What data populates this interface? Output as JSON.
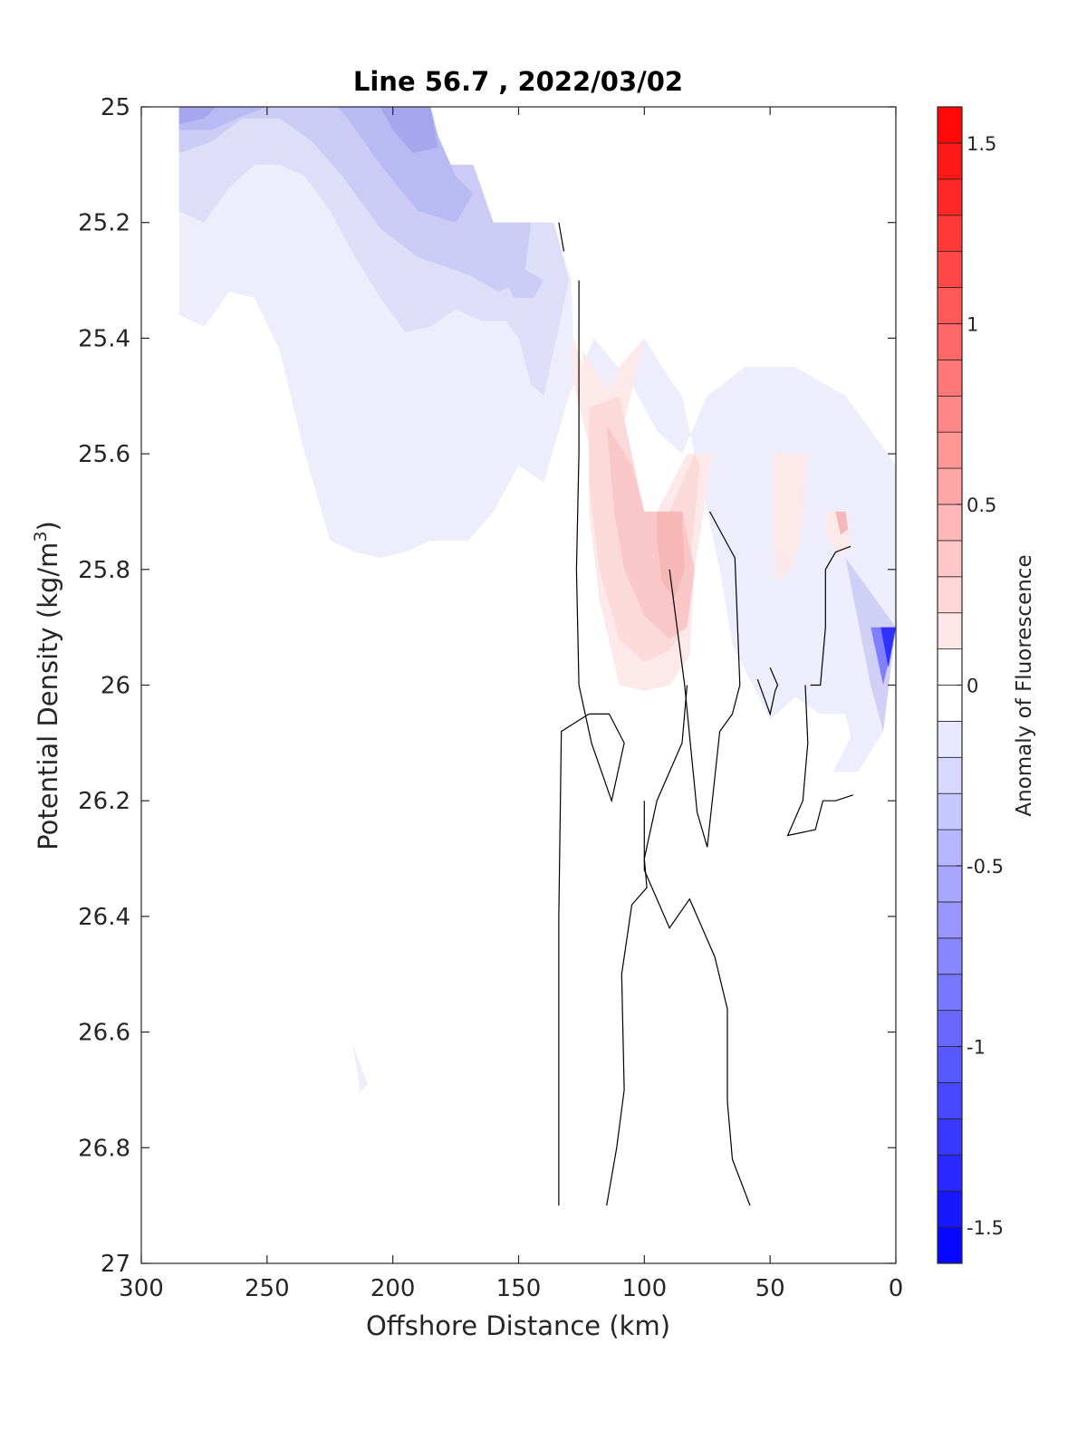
{
  "chart_data": {
    "type": "contour",
    "title": "Line 56.7 , 2022/03/02",
    "xlabel": "Offshore Distance (km)",
    "ylabel_main": "Potential Density (kg/m",
    "ylabel_sup": "3",
    "ylabel_end": ")",
    "colorbar_label": "Anomaly of Fluorescence",
    "xlim": [
      300,
      0
    ],
    "ylim": [
      25,
      27
    ],
    "x_reversed": true,
    "y_reversed": true,
    "xticks": [
      300,
      250,
      200,
      150,
      100,
      50,
      0
    ],
    "xtick_labels": [
      "300",
      "250",
      "200",
      "150",
      "100",
      "50",
      "0"
    ],
    "yticks": [
      25,
      25.2,
      25.4,
      25.6,
      25.8,
      26,
      26.2,
      26.4,
      26.6,
      26.8,
      27
    ],
    "ytick_labels": [
      "25",
      "25.2",
      "25.4",
      "25.6",
      "25.8",
      "26",
      "26.2",
      "26.4",
      "26.6",
      "26.8",
      "27"
    ],
    "colorbar": {
      "range": [
        -1.6,
        1.6
      ],
      "step": 0.1,
      "ticks": [
        1.5,
        1,
        0.5,
        0,
        -0.5,
        -1,
        -1.5
      ],
      "tick_labels": [
        "1.5",
        "1",
        "0.5",
        "0",
        "-0.5",
        "-1",
        "-1.5"
      ],
      "colormap": "blue-white-red",
      "low_color": "#0000ff",
      "mid_color": "#ffffff",
      "high_color": "#ff0000"
    },
    "filled_regions": [
      {
        "level": -0.1,
        "color": "#ededfb",
        "points": [
          [
            285,
            25
          ],
          [
            185,
            25
          ],
          [
            180,
            25.1
          ],
          [
            168,
            25.1
          ],
          [
            160,
            25.2
          ],
          [
            136,
            25.2
          ],
          [
            129,
            25.3
          ],
          [
            128,
            25.45
          ],
          [
            124,
            25.55
          ],
          [
            120,
            25.62
          ],
          [
            115,
            25.5
          ],
          [
            110,
            25.45
          ],
          [
            100,
            25.4
          ],
          [
            90,
            25.47
          ],
          [
            85,
            25.5
          ],
          [
            75,
            25.7
          ],
          [
            70,
            25.8
          ],
          [
            65,
            25.93
          ],
          [
            50,
            26.06
          ],
          [
            40,
            26.02
          ],
          [
            30,
            26.05
          ],
          [
            20,
            26.05
          ],
          [
            18,
            26.09
          ],
          [
            25,
            26.15
          ],
          [
            15,
            26.15
          ],
          [
            5,
            26.08
          ],
          [
            0,
            25.9
          ],
          [
            0,
            25.62
          ],
          [
            20,
            25.5
          ],
          [
            40,
            25.45
          ],
          [
            60,
            25.45
          ],
          [
            75,
            25.5
          ],
          [
            85,
            25.6
          ],
          [
            95,
            25.56
          ],
          [
            105,
            25.48
          ],
          [
            120,
            25.4
          ],
          [
            130,
            25.5
          ],
          [
            140,
            25.65
          ],
          [
            150,
            25.62
          ],
          [
            160,
            25.7
          ],
          [
            170,
            25.75
          ],
          [
            185,
            25.75
          ],
          [
            195,
            25.77
          ],
          [
            205,
            25.78
          ],
          [
            215,
            25.77
          ],
          [
            225,
            25.75
          ],
          [
            235,
            25.6
          ],
          [
            245,
            25.42
          ],
          [
            255,
            25.33
          ],
          [
            265,
            25.32
          ],
          [
            275,
            25.38
          ],
          [
            285,
            25.36
          ]
        ]
      },
      {
        "level": -0.1,
        "color": "#ededfb",
        "points": [
          [
            216,
            26.62
          ],
          [
            213,
            26.7
          ],
          [
            214,
            26.71
          ],
          [
            210,
            26.69
          ]
        ]
      },
      {
        "level": -0.2,
        "color": "#dedef8",
        "points": [
          [
            285,
            25
          ],
          [
            185,
            25
          ],
          [
            180,
            25.1
          ],
          [
            168,
            25.1
          ],
          [
            160,
            25.2
          ],
          [
            136,
            25.2
          ],
          [
            130,
            25.3
          ],
          [
            135,
            25.4
          ],
          [
            140,
            25.5
          ],
          [
            145,
            25.48
          ],
          [
            150,
            25.4
          ],
          [
            155,
            25.37
          ],
          [
            165,
            25.37
          ],
          [
            175,
            25.35
          ],
          [
            185,
            25.38
          ],
          [
            195,
            25.39
          ],
          [
            205,
            25.33
          ],
          [
            215,
            25.26
          ],
          [
            225,
            25.18
          ],
          [
            235,
            25.12
          ],
          [
            245,
            25.1
          ],
          [
            255,
            25.1
          ],
          [
            265,
            25.14
          ],
          [
            275,
            25.2
          ],
          [
            285,
            25.18
          ]
        ]
      },
      {
        "level": -0.3,
        "color": "#cbcbf6",
        "points": [
          [
            285,
            25
          ],
          [
            185,
            25
          ],
          [
            180,
            25.1
          ],
          [
            168,
            25.1
          ],
          [
            160,
            25.2
          ],
          [
            145,
            25.2
          ],
          [
            148,
            25.3
          ],
          [
            158,
            25.32
          ],
          [
            170,
            25.29
          ],
          [
            190,
            25.26
          ],
          [
            205,
            25.21
          ],
          [
            220,
            25.12
          ],
          [
            232,
            25.06
          ],
          [
            245,
            25.02
          ],
          [
            260,
            25.02
          ],
          [
            272,
            25.06
          ],
          [
            285,
            25.08
          ]
        ]
      },
      {
        "level": -0.3,
        "color": "#cbcbf6",
        "points": [
          [
            140,
            25.3
          ],
          [
            148,
            25.28
          ],
          [
            155,
            25.3
          ],
          [
            152,
            25.33
          ],
          [
            144,
            25.33
          ]
        ]
      },
      {
        "level": -0.4,
        "color": "#b9b9f3",
        "points": [
          [
            285,
            25
          ],
          [
            185,
            25
          ],
          [
            182,
            25.05
          ],
          [
            175,
            25.12
          ],
          [
            168,
            25.15
          ],
          [
            175,
            25.2
          ],
          [
            190,
            25.18
          ],
          [
            205,
            25.1
          ],
          [
            218,
            25.02
          ],
          [
            222,
            25
          ],
          [
            250,
            25
          ],
          [
            262,
            25.02
          ],
          [
            272,
            25.04
          ],
          [
            285,
            25.04
          ]
        ]
      },
      {
        "level": -0.5,
        "color": "#a6a6ef",
        "points": [
          [
            285,
            25
          ],
          [
            185,
            25
          ],
          [
            182,
            25.07
          ],
          [
            192,
            25.08
          ],
          [
            200,
            25.04
          ],
          [
            205,
            25
          ]
        ]
      },
      {
        "level": -0.5,
        "color": "#a6a6ef",
        "points": [
          [
            285,
            25
          ],
          [
            270,
            25
          ],
          [
            275,
            25.02
          ],
          [
            285,
            25.03
          ]
        ]
      },
      {
        "level": -0.5,
        "color": "#d0d0f6",
        "points": [
          [
            20,
            25.78
          ],
          [
            10,
            26.0
          ],
          [
            5,
            26.08
          ],
          [
            0,
            25.9
          ]
        ]
      },
      {
        "level": -0.8,
        "color": "#8080ff",
        "points": [
          [
            10,
            25.9
          ],
          [
            5,
            26.0
          ],
          [
            0,
            25.9
          ]
        ]
      },
      {
        "level": -1.2,
        "color": "#3030ff",
        "points": [
          [
            6,
            25.9
          ],
          [
            3,
            25.97
          ],
          [
            0,
            25.9
          ]
        ]
      },
      {
        "level": 0.1,
        "color": "#fde9e9",
        "points": [
          [
            112,
            25.62
          ],
          [
            118,
            25.52
          ],
          [
            125,
            25.44
          ],
          [
            129,
            25.39
          ],
          [
            128,
            25.48
          ],
          [
            124,
            25.55
          ],
          [
            120,
            25.62
          ],
          [
            115,
            25.5
          ],
          [
            110,
            25.45
          ],
          [
            100,
            25.4
          ]
        ]
      },
      {
        "level": 0.1,
        "color": "#fde9e9",
        "points": [
          [
            122,
            25.5
          ],
          [
            125,
            25.42
          ],
          [
            112,
            25.5
          ],
          [
            100,
            25.7
          ],
          [
            95,
            25.7
          ],
          [
            83,
            25.6
          ],
          [
            73,
            25.6
          ],
          [
            80,
            25.8
          ],
          [
            82,
            25.95
          ],
          [
            90,
            26.0
          ],
          [
            100,
            26.01
          ],
          [
            110,
            26.0
          ],
          [
            118,
            25.85
          ],
          [
            122,
            25.7
          ]
        ]
      },
      {
        "level": 0.1,
        "color": "#fde9e9",
        "points": [
          [
            49,
            25.6
          ],
          [
            35,
            25.6
          ],
          [
            38,
            25.75
          ],
          [
            42,
            25.8
          ],
          [
            48,
            25.82
          ],
          [
            49,
            25.7
          ]
        ]
      },
      {
        "level": 0.1,
        "color": "#fde9e9",
        "points": [
          [
            28,
            25.7
          ],
          [
            20,
            25.7
          ],
          [
            18,
            25.75
          ],
          [
            22,
            25.78
          ],
          [
            28,
            25.74
          ]
        ]
      },
      {
        "level": 0.2,
        "color": "#fcdada",
        "points": [
          [
            122,
            25.52
          ],
          [
            110,
            25.5
          ],
          [
            100,
            25.7
          ],
          [
            90,
            25.7
          ],
          [
            80,
            25.6
          ],
          [
            78,
            25.62
          ],
          [
            82,
            25.8
          ],
          [
            84,
            25.9
          ],
          [
            90,
            25.94
          ],
          [
            100,
            25.96
          ],
          [
            110,
            25.92
          ],
          [
            118,
            25.8
          ],
          [
            122,
            25.65
          ]
        ]
      },
      {
        "level": 0.3,
        "color": "#f9c7c7",
        "points": [
          [
            115,
            25.55
          ],
          [
            105,
            25.62
          ],
          [
            100,
            25.7
          ],
          [
            85,
            25.7
          ],
          [
            80,
            25.8
          ],
          [
            83,
            25.9
          ],
          [
            90,
            25.92
          ],
          [
            100,
            25.88
          ],
          [
            108,
            25.8
          ],
          [
            112,
            25.7
          ]
        ]
      },
      {
        "level": 0.4,
        "color": "#f6b7b7",
        "points": [
          [
            95,
            25.7
          ],
          [
            85,
            25.7
          ],
          [
            84,
            25.8
          ],
          [
            88,
            25.85
          ],
          [
            93,
            25.82
          ],
          [
            95,
            25.75
          ]
        ]
      },
      {
        "level": 0.4,
        "color": "#f6b7b7",
        "points": [
          [
            24,
            25.7
          ],
          [
            20,
            25.7
          ],
          [
            19,
            25.73
          ],
          [
            22,
            25.74
          ]
        ]
      }
    ],
    "zero_contours": [
      [
        [
          134,
          25.2
        ],
        [
          132,
          25.25
        ]
      ],
      [
        [
          126,
          25.3
        ],
        [
          126,
          25.6
        ],
        [
          127,
          25.8
        ],
        [
          126,
          26.0
        ],
        [
          121,
          26.1
        ],
        [
          113,
          26.2
        ],
        [
          108,
          26.1
        ],
        [
          114,
          26.05
        ],
        [
          122,
          26.05
        ],
        [
          133,
          26.08
        ],
        [
          134,
          26.4
        ],
        [
          134,
          26.9
        ]
      ],
      [
        [
          83,
          26.0
        ],
        [
          85,
          26.1
        ],
        [
          95,
          26.2
        ],
        [
          100,
          26.3
        ],
        [
          99,
          26.35
        ],
        [
          105,
          26.38
        ],
        [
          109,
          26.5
        ],
        [
          108,
          26.7
        ],
        [
          111,
          26.8
        ],
        [
          115,
          26.9
        ]
      ],
      [
        [
          100,
          26.2
        ],
        [
          100,
          26.32
        ],
        [
          90,
          26.42
        ],
        [
          82,
          26.37
        ],
        [
          72,
          26.47
        ],
        [
          67,
          26.56
        ],
        [
          67,
          26.72
        ],
        [
          65,
          26.82
        ],
        [
          58,
          26.9
        ]
      ],
      [
        [
          74,
          25.7
        ],
        [
          64,
          25.78
        ],
        [
          62,
          26.0
        ],
        [
          65,
          26.05
        ],
        [
          70,
          26.08
        ],
        [
          75,
          26.28
        ],
        [
          79,
          26.22
        ],
        [
          84,
          26.0
        ],
        [
          90,
          25.8
        ]
      ],
      [
        [
          55,
          25.99
        ],
        [
          50,
          26.05
        ],
        [
          48,
          26.01
        ],
        [
          47,
          26.0
        ],
        [
          50,
          25.97
        ]
      ],
      [
        [
          34,
          26.0
        ],
        [
          30,
          26.0
        ],
        [
          28,
          25.9
        ],
        [
          28,
          25.8
        ],
        [
          24,
          25.77
        ],
        [
          18,
          25.76
        ]
      ],
      [
        [
          36,
          26.0
        ],
        [
          35,
          26.1
        ],
        [
          37,
          26.2
        ],
        [
          43,
          26.26
        ],
        [
          32,
          26.25
        ],
        [
          29,
          26.2
        ],
        [
          24,
          26.2
        ],
        [
          17,
          26.19
        ]
      ]
    ]
  }
}
